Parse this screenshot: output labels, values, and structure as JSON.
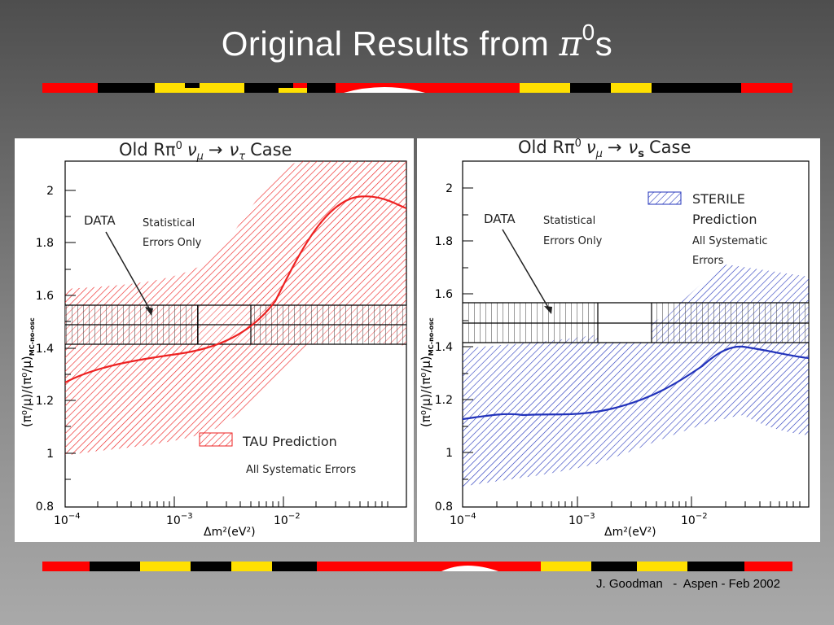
{
  "slide": {
    "title_text": "Original Results from ",
    "title_pi": "π",
    "title_sup": "0",
    "title_tail": "s",
    "footer": "J. Goodman   -  Aspen - Feb 2002"
  },
  "left_plot": {
    "title_prefix": "Old Rπ",
    "title_sup": "0",
    "title_nu1": "ν",
    "title_sub1": "μ",
    "title_arrow": "→",
    "title_nu2": "ν",
    "title_sub2": "τ",
    "title_case": "Case",
    "data_label": "DATA",
    "stat_line1": "Statistical",
    "stat_line2": "Errors Only",
    "pred_label": "TAU Prediction",
    "pred_sub": "All Systematic Errors",
    "ylabel": "(π⁰/μ)/(π⁰/μ)",
    "ylabel_sub": "MC-no-osc",
    "xlabel": "Δm²(eV²)",
    "yticks": [
      "2",
      "1.8",
      "1.6",
      "1.4",
      "1.2",
      "1",
      "0.8"
    ],
    "xticks": [
      "10",
      "10",
      "10"
    ],
    "xtick_exp": [
      "−4",
      "−3",
      "−2"
    ]
  },
  "right_plot": {
    "title_prefix": "Old Rπ",
    "title_sup": "0",
    "title_nu1": "ν",
    "title_sub1": "μ",
    "title_arrow": "→",
    "title_nu2": "ν",
    "title_sub2": "s",
    "title_case": "Case",
    "data_label": "DATA",
    "stat_line1": "Statistical",
    "stat_line2": "Errors Only",
    "pred_label1": "STERILE",
    "pred_label2": "Prediction",
    "pred_sub1": "All Systematic",
    "pred_sub2": "Errors",
    "ylabel": "(π⁰/μ)/(π⁰/μ)",
    "ylabel_sub": "MC-no-osc",
    "xlabel": "Δm²(eV²)",
    "yticks": [
      "2",
      "1.8",
      "1.6",
      "1.4",
      "1.2",
      "1",
      "0.8"
    ],
    "xticks": [
      "10",
      "10",
      "10"
    ],
    "xtick_exp": [
      "−4",
      "−3",
      "−2"
    ]
  },
  "colors": {
    "tau": "#ee2222",
    "sterile": "#2233bb",
    "stripe_red": "#ff0000",
    "stripe_yellow": "#ffe000",
    "stripe_black": "#000000"
  }
}
